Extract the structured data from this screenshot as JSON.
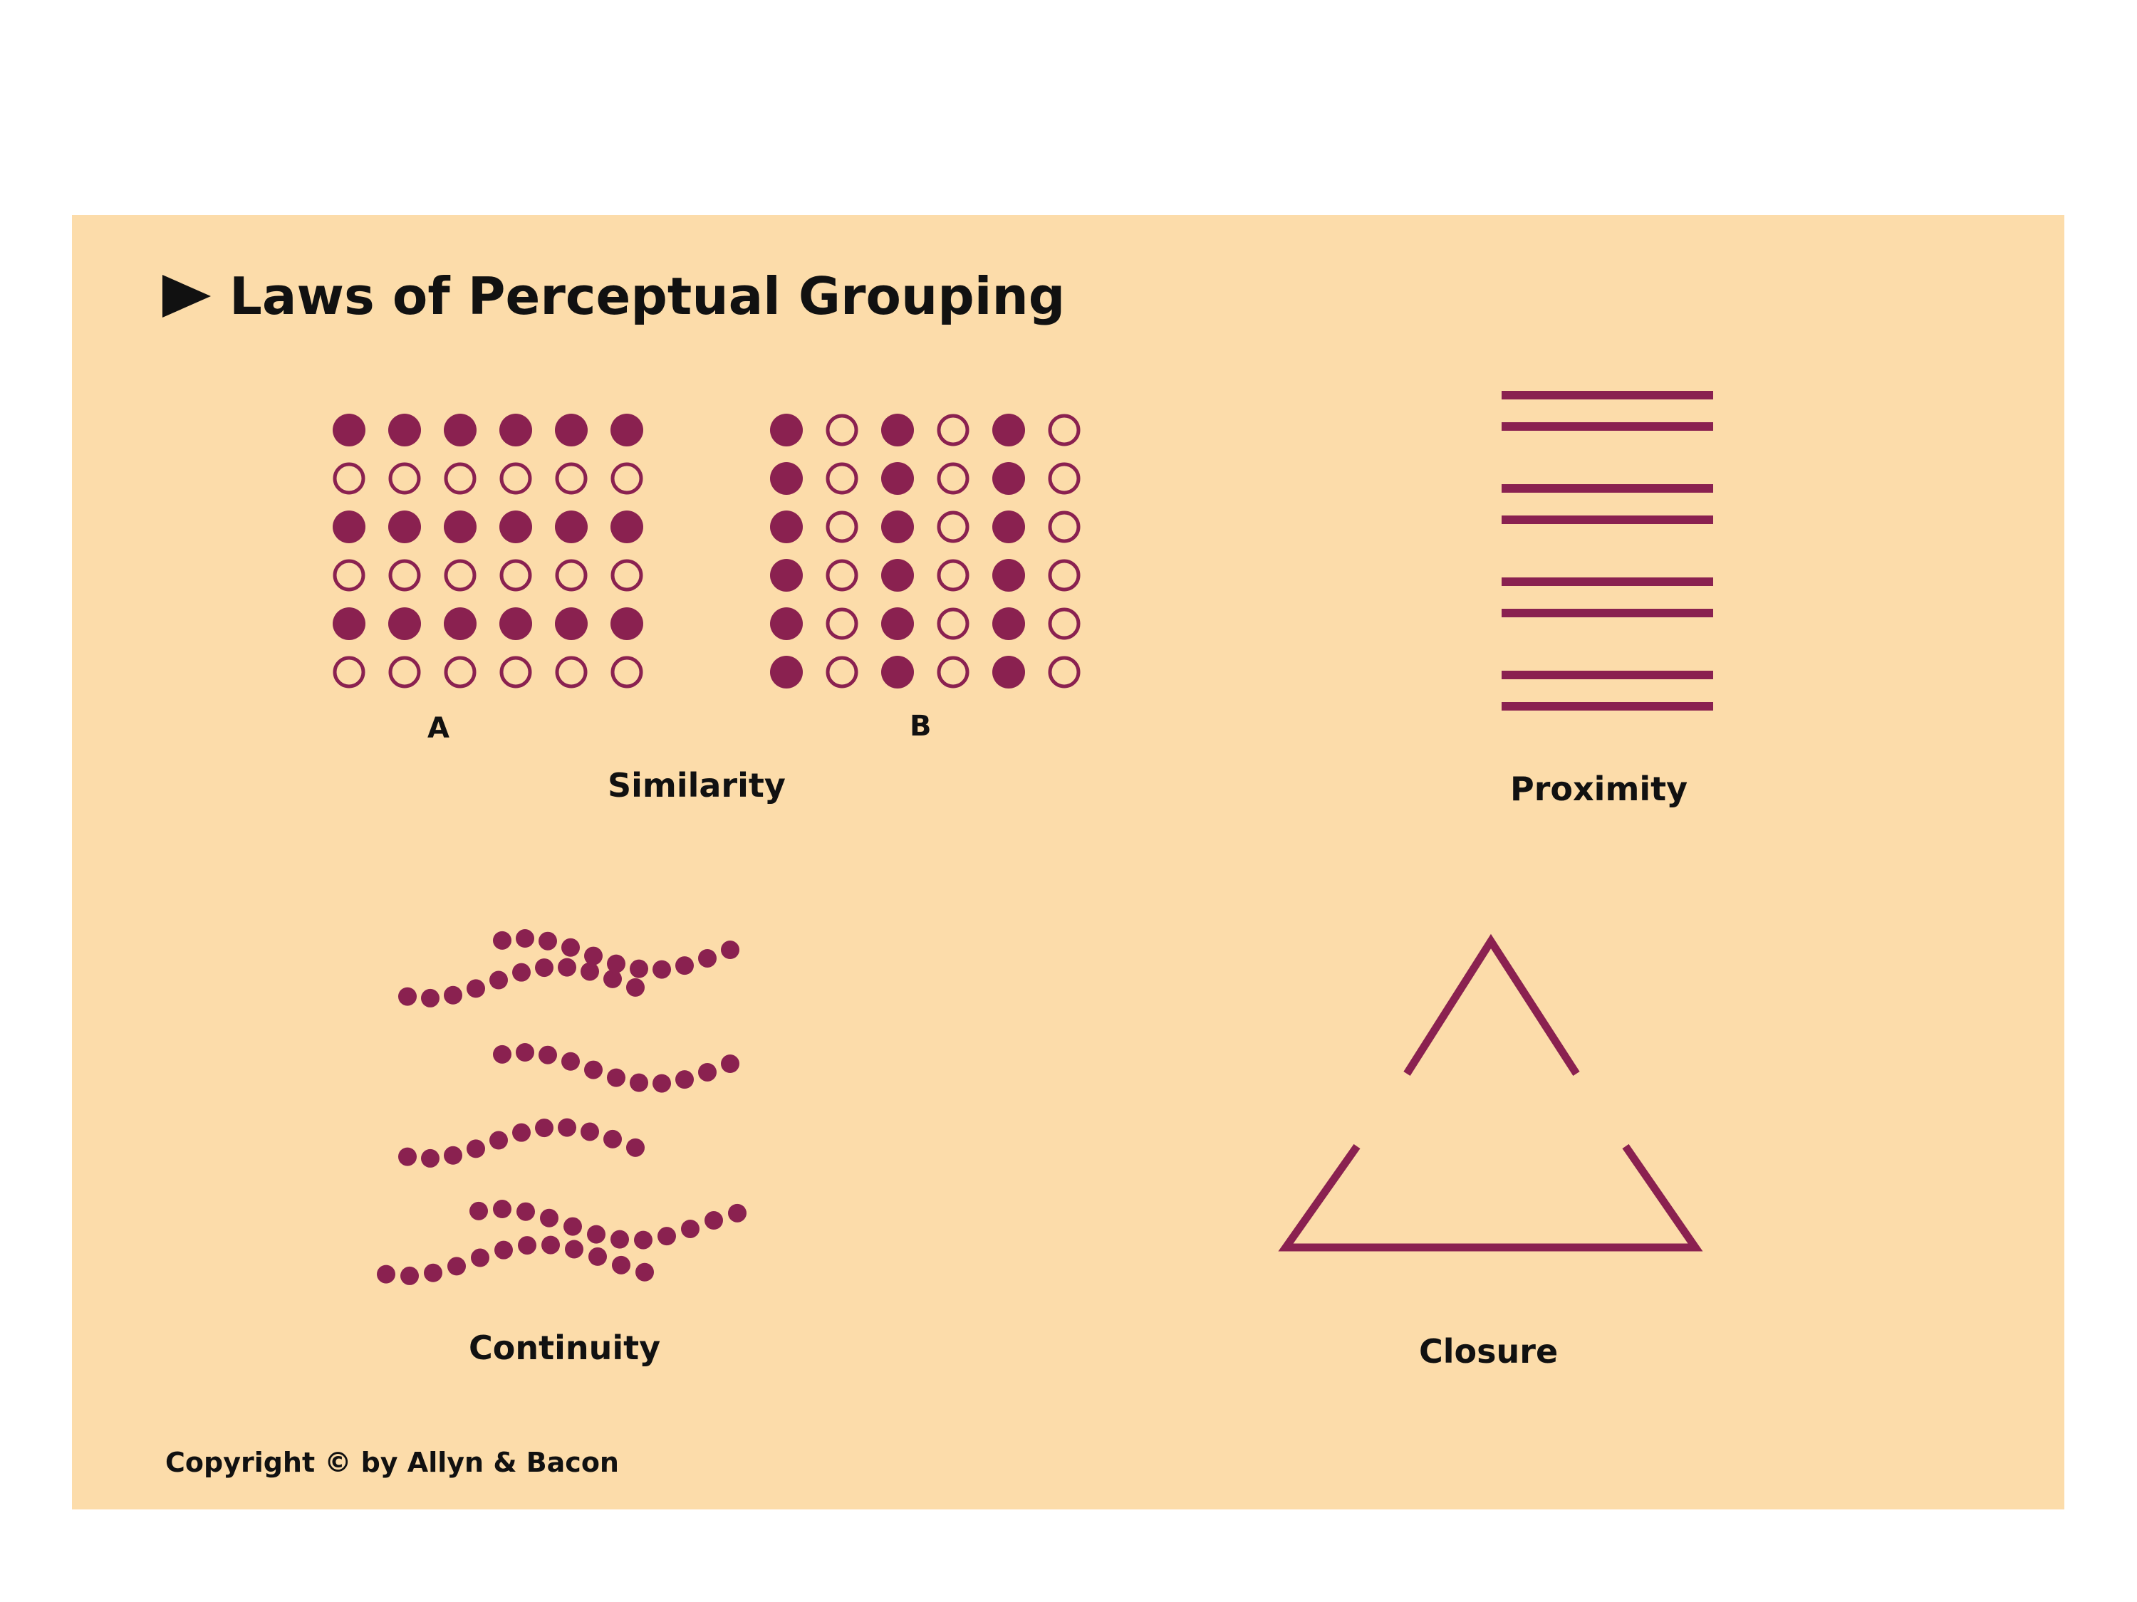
{
  "title": "Laws of Perceptual Grouping",
  "colors": {
    "panel": "#fcdcaa",
    "accent": "#8a2150",
    "text": "#111111"
  },
  "icons": {
    "title_marker": "right-pointing-triangle-icon"
  },
  "similarity": {
    "label": "Similarity",
    "grid_a": {
      "label": "A",
      "rows": 6,
      "cols": 6,
      "pattern": "filled rows 1, 3, 5; open rows 2, 4, 6"
    },
    "grid_b": {
      "label": "B",
      "rows": 6,
      "cols": 6,
      "pattern": "filled columns 1, 3, 5; open columns 2, 4, 6"
    }
  },
  "proximity": {
    "label": "Proximity",
    "line_pairs": 4,
    "lines_per_pair": 2
  },
  "continuity": {
    "label": "Continuity",
    "wave_groups": 4
  },
  "closure": {
    "label": "Closure",
    "shape": "triangle with gaps in the sides"
  },
  "copyright": "Copyright © by Allyn & Bacon"
}
